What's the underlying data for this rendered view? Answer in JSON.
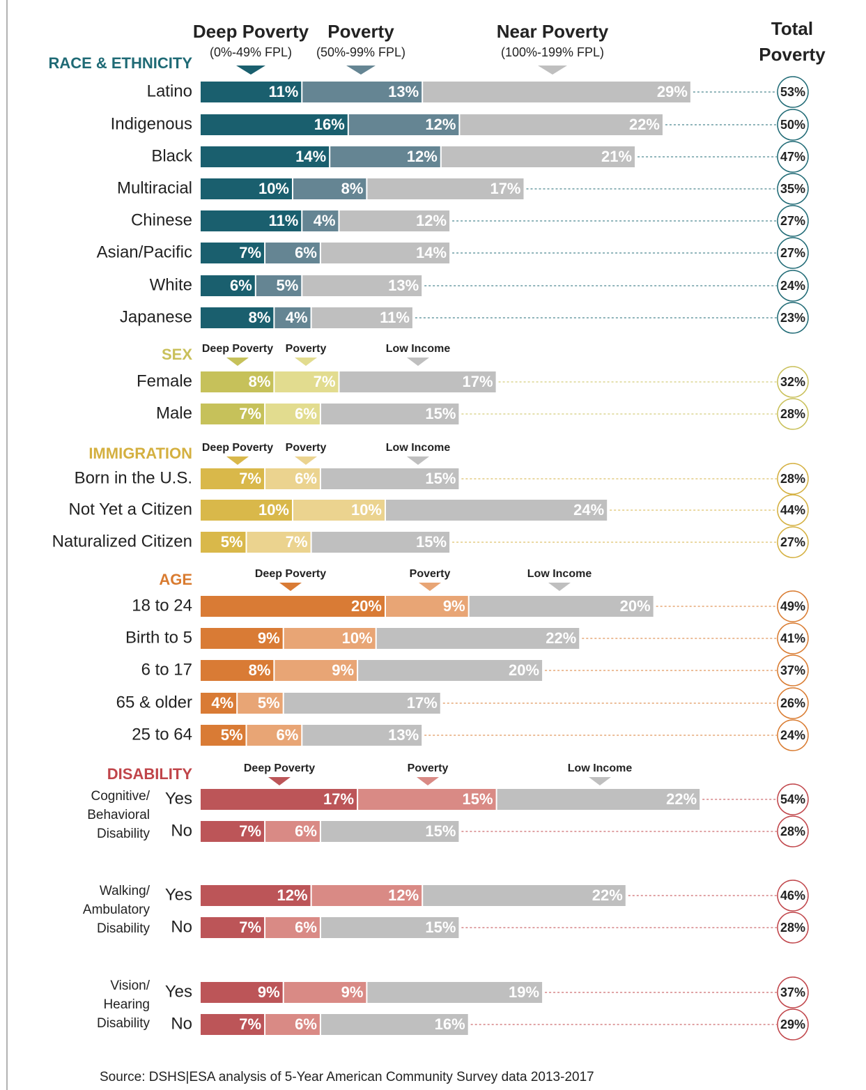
{
  "chart_data": {
    "type": "bar",
    "orientation": "horizontal",
    "stacked": true,
    "total_title": [
      "Total",
      "Poverty"
    ],
    "source": "Source: DSHS|ESA analysis of 5-Year American Community Survey data 2013-2017",
    "groups": [
      {
        "name": "RACE & ETHNICITY",
        "header_color": "#1f6a75",
        "colors": [
          "#1a5f6e",
          "#658593",
          "#bfbfbf"
        ],
        "legend": [
          {
            "name": "Deep Poverty",
            "note": "(0%-49% FPL)"
          },
          {
            "name": "Poverty",
            "note": "(50%-99% FPL)"
          },
          {
            "name": "Near Poverty",
            "note": "(100%-199% FPL)"
          }
        ],
        "rows": [
          {
            "label": "Latino",
            "values": [
              11,
              13,
              29
            ],
            "value_labels": [
              "11%",
              "13%",
              "29%"
            ],
            "total": 53,
            "total_label": "53%"
          },
          {
            "label": "Indigenous",
            "values": [
              16,
              12,
              22
            ],
            "value_labels": [
              "16%",
              "12%",
              "22%"
            ],
            "total": 50,
            "total_label": "50%"
          },
          {
            "label": "Black",
            "values": [
              14,
              12,
              21
            ],
            "value_labels": [
              "14%",
              "12%",
              "21%"
            ],
            "total": 47,
            "total_label": "47%"
          },
          {
            "label": "Multiracial",
            "values": [
              10,
              8,
              17
            ],
            "value_labels": [
              "10%",
              "8%",
              "17%"
            ],
            "total": 35,
            "total_label": "35%"
          },
          {
            "label": "Chinese",
            "values": [
              11,
              4,
              12
            ],
            "value_labels": [
              "11%",
              "4%",
              "12%"
            ],
            "total": 27,
            "total_label": "27%"
          },
          {
            "label": "Asian/Pacific",
            "values": [
              7,
              6,
              14
            ],
            "value_labels": [
              "7%",
              "6%",
              "14%"
            ],
            "total": 27,
            "total_label": "27%"
          },
          {
            "label": "White",
            "values": [
              6,
              5,
              13
            ],
            "value_labels": [
              "6%",
              "5%",
              "13%"
            ],
            "total": 24,
            "total_label": "24%"
          },
          {
            "label": "Japanese",
            "values": [
              8,
              4,
              11
            ],
            "value_labels": [
              "8%",
              "4%",
              "11%"
            ],
            "total": 23,
            "total_label": "23%"
          }
        ]
      },
      {
        "name": "SEX",
        "header_color": "#c9c05a",
        "colors": [
          "#c6c15a",
          "#e2dc8f",
          "#bfbfbf"
        ],
        "legend": [
          {
            "name": "Deep Poverty"
          },
          {
            "name": "Poverty"
          },
          {
            "name": "Low Income"
          }
        ],
        "rows": [
          {
            "label": "Female",
            "values": [
              8,
              7,
              17
            ],
            "value_labels": [
              "8%",
              "7%",
              "17%"
            ],
            "total": 32,
            "total_label": "32%"
          },
          {
            "label": "Male",
            "values": [
              7,
              6,
              15
            ],
            "value_labels": [
              "7%",
              "6%",
              "15%"
            ],
            "total": 28,
            "total_label": "28%"
          }
        ]
      },
      {
        "name": "IMMIGRATION",
        "header_color": "#d4b040",
        "colors": [
          "#d9b84a",
          "#ebd38f",
          "#bfbfbf"
        ],
        "legend": [
          {
            "name": "Deep Poverty"
          },
          {
            "name": "Poverty"
          },
          {
            "name": "Low Income"
          }
        ],
        "rows": [
          {
            "label": "Born in the U.S.",
            "values": [
              7,
              6,
              15
            ],
            "value_labels": [
              "7%",
              "6%",
              "15%"
            ],
            "total": 28,
            "total_label": "28%"
          },
          {
            "label": "Not Yet a Citizen",
            "values": [
              10,
              10,
              24
            ],
            "value_labels": [
              "10%",
              "10%",
              "24%"
            ],
            "total": 44,
            "total_label": "44%"
          },
          {
            "label": "Naturalized Citizen",
            "values": [
              5,
              7,
              15
            ],
            "value_labels": [
              "5%",
              "7%",
              "15%"
            ],
            "total": 27,
            "total_label": "27%"
          }
        ]
      },
      {
        "name": "AGE",
        "header_color": "#d97b30",
        "colors": [
          "#d97b35",
          "#e8a575",
          "#bfbfbf"
        ],
        "legend": [
          {
            "name": "Deep Poverty"
          },
          {
            "name": "Poverty"
          },
          {
            "name": "Low Income"
          }
        ],
        "rows": [
          {
            "label": "18 to 24",
            "values": [
              20,
              9,
              20
            ],
            "value_labels": [
              "20%",
              "9%",
              "20%"
            ],
            "total": 49,
            "total_label": "49%"
          },
          {
            "label": "Birth to 5",
            "values": [
              9,
              10,
              22
            ],
            "value_labels": [
              "9%",
              "10%",
              "22%"
            ],
            "total": 41,
            "total_label": "41%"
          },
          {
            "label": "6 to 17",
            "values": [
              8,
              9,
              20
            ],
            "value_labels": [
              "8%",
              "9%",
              "20%"
            ],
            "total": 37,
            "total_label": "37%"
          },
          {
            "label": "65 & older",
            "values": [
              4,
              5,
              17
            ],
            "value_labels": [
              "4%",
              "5%",
              "17%"
            ],
            "total": 26,
            "total_label": "26%"
          },
          {
            "label": "25 to 64",
            "values": [
              5,
              6,
              13
            ],
            "value_labels": [
              "5%",
              "6%",
              "13%"
            ],
            "total": 24,
            "total_label": "24%"
          }
        ]
      },
      {
        "name": "DISABILITY",
        "header_color": "#c0454a",
        "colors": [
          "#bc5558",
          "#d98a85",
          "#bfbfbf"
        ],
        "legend": [
          {
            "name": "Deep Poverty"
          },
          {
            "name": "Poverty"
          },
          {
            "name": "Low Income"
          }
        ],
        "subgroups": [
          {
            "lines": [
              "Cognitive/",
              "Behavioral",
              "Disability"
            ],
            "rows": [
              {
                "label": "Yes",
                "values": [
                  17,
                  15,
                  22
                ],
                "value_labels": [
                  "17%",
                  "15%",
                  "22%"
                ],
                "total": 54,
                "total_label": "54%"
              },
              {
                "label": "No",
                "values": [
                  7,
                  6,
                  15
                ],
                "value_labels": [
                  "7%",
                  "6%",
                  "15%"
                ],
                "total": 28,
                "total_label": "28%"
              }
            ]
          },
          {
            "lines": [
              "Walking/",
              "Ambulatory",
              "Disability"
            ],
            "rows": [
              {
                "label": "Yes",
                "values": [
                  12,
                  12,
                  22
                ],
                "value_labels": [
                  "12%",
                  "12%",
                  "22%"
                ],
                "total": 46,
                "total_label": "46%"
              },
              {
                "label": "No",
                "values": [
                  7,
                  6,
                  15
                ],
                "value_labels": [
                  "7%",
                  "6%",
                  "15%"
                ],
                "total": 28,
                "total_label": "28%"
              }
            ]
          },
          {
            "lines": [
              "Vision/",
              "Hearing",
              "Disability"
            ],
            "rows": [
              {
                "label": "Yes",
                "values": [
                  9,
                  9,
                  19
                ],
                "value_labels": [
                  "9%",
                  "9%",
                  "19%"
                ],
                "total": 37,
                "total_label": "37%"
              },
              {
                "label": "No",
                "values": [
                  7,
                  6,
                  16
                ],
                "value_labels": [
                  "7%",
                  "6%",
                  "16%"
                ],
                "total": 29,
                "total_label": "29%"
              }
            ]
          }
        ]
      }
    ]
  }
}
